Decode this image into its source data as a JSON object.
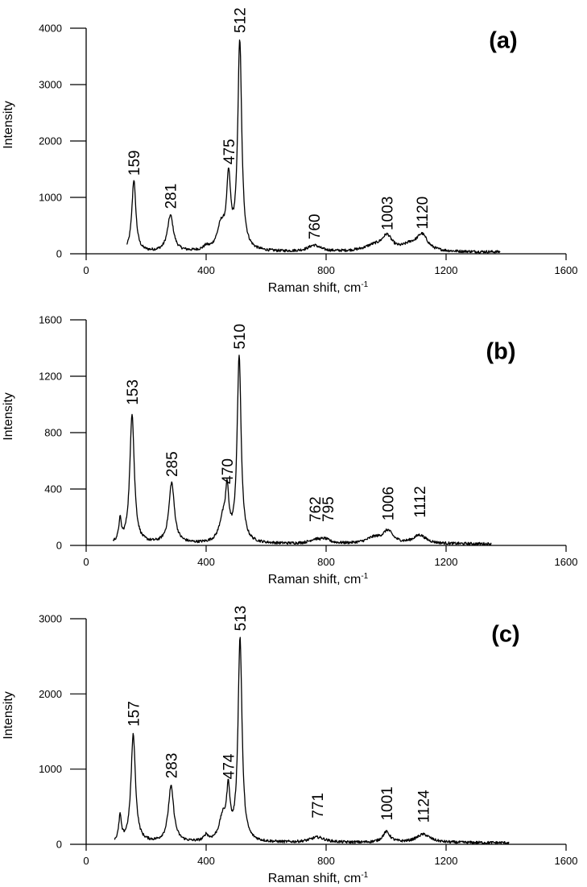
{
  "chart_data": [
    {
      "type": "line",
      "panel_label": "(a)",
      "xlabel": "Raman shift, cm",
      "xlabel_sup": "-1",
      "ylabel": "Intensity",
      "xlim": [
        0,
        1600
      ],
      "ylim": [
        0,
        4000
      ],
      "xticks": [
        0,
        400,
        800,
        1200,
        1600
      ],
      "yticks": [
        0,
        1000,
        2000,
        3000,
        4000
      ],
      "xtick_labels": [
        "0",
        "400",
        "800",
        "1200",
        "1600"
      ],
      "ytick_labels": [
        "0",
        "1000",
        "2000",
        "3000",
        "4000"
      ],
      "x_range": [
        135,
        1380
      ],
      "baseline": 30,
      "peaks": [
        {
          "center": 159,
          "height": 1270,
          "width": 8
        },
        {
          "center": 281,
          "height": 640,
          "width": 12
        },
        {
          "center": 400,
          "height": 60,
          "width": 10
        },
        {
          "center": 450,
          "height": 420,
          "width": 16
        },
        {
          "center": 475,
          "height": 1200,
          "width": 8
        },
        {
          "center": 512,
          "height": 3700,
          "width": 8
        },
        {
          "center": 760,
          "height": 110,
          "width": 25
        },
        {
          "center": 960,
          "height": 100,
          "width": 40
        },
        {
          "center": 1003,
          "height": 250,
          "width": 20
        },
        {
          "center": 1080,
          "height": 100,
          "width": 30
        },
        {
          "center": 1120,
          "height": 280,
          "width": 22
        }
      ],
      "annotations": [
        {
          "text": "159",
          "x": 159,
          "y": 1270
        },
        {
          "text": "281",
          "x": 281,
          "y": 680
        },
        {
          "text": "475",
          "x": 475,
          "y": 1470
        },
        {
          "text": "512",
          "x": 512,
          "y": 3800
        },
        {
          "text": "760",
          "x": 760,
          "y": 140
        },
        {
          "text": "1003",
          "x": 1003,
          "y": 300
        },
        {
          "text": "1120",
          "x": 1120,
          "y": 320
        }
      ]
    },
    {
      "type": "line",
      "panel_label": "(b)",
      "xlabel": "Raman shift, cm",
      "xlabel_sup": "-1",
      "ylabel": "Intensity",
      "xlim": [
        0,
        1600
      ],
      "ylim": [
        0,
        1600
      ],
      "xticks": [
        0,
        400,
        800,
        1200,
        1600
      ],
      "yticks": [
        0,
        400,
        800,
        1200,
        1600
      ],
      "xtick_labels": [
        "0",
        "400",
        "800",
        "1200",
        "1600"
      ],
      "ytick_labels": [
        "0",
        "400",
        "800",
        "1200",
        "1600"
      ],
      "x_range": [
        90,
        1350
      ],
      "baseline": 10,
      "peaks": [
        {
          "center": 113,
          "height": 150,
          "width": 5
        },
        {
          "center": 153,
          "height": 920,
          "width": 9
        },
        {
          "center": 285,
          "height": 430,
          "width": 11
        },
        {
          "center": 455,
          "height": 150,
          "width": 14
        },
        {
          "center": 470,
          "height": 330,
          "width": 7
        },
        {
          "center": 510,
          "height": 1320,
          "width": 8
        },
        {
          "center": 762,
          "height": 25,
          "width": 20
        },
        {
          "center": 795,
          "height": 30,
          "width": 20
        },
        {
          "center": 960,
          "height": 40,
          "width": 30
        },
        {
          "center": 1006,
          "height": 85,
          "width": 20
        },
        {
          "center": 1112,
          "height": 60,
          "width": 25
        }
      ],
      "annotations": [
        {
          "text": "153",
          "x": 153,
          "y": 950
        },
        {
          "text": "285",
          "x": 285,
          "y": 440
        },
        {
          "text": "470",
          "x": 470,
          "y": 390
        },
        {
          "text": "510",
          "x": 510,
          "y": 1345
        },
        {
          "text": "762",
          "x": 762,
          "y": 120
        },
        {
          "text": "795",
          "x": 805,
          "y": 120
        },
        {
          "text": "1006",
          "x": 1006,
          "y": 130
        },
        {
          "text": "1112",
          "x": 1112,
          "y": 150
        }
      ]
    },
    {
      "type": "line",
      "panel_label": "(c)",
      "xlabel": "Raman shift, cm",
      "xlabel_sup": "-1",
      "ylabel": "Intensity",
      "xlim": [
        0,
        1600
      ],
      "ylim": [
        0,
        3000
      ],
      "xticks": [
        0,
        400,
        800,
        1200,
        1600
      ],
      "yticks": [
        0,
        1000,
        2000,
        3000
      ],
      "xtick_labels": [
        "0",
        "400",
        "800",
        "1200",
        "1600"
      ],
      "ytick_labels": [
        "0",
        "1000",
        "2000",
        "3000"
      ],
      "x_range": [
        95,
        1410
      ],
      "baseline": 20,
      "peaks": [
        {
          "center": 113,
          "height": 330,
          "width": 5
        },
        {
          "center": 157,
          "height": 1430,
          "width": 9
        },
        {
          "center": 283,
          "height": 740,
          "width": 11
        },
        {
          "center": 400,
          "height": 80,
          "width": 8
        },
        {
          "center": 455,
          "height": 300,
          "width": 14
        },
        {
          "center": 474,
          "height": 620,
          "width": 7
        },
        {
          "center": 513,
          "height": 2700,
          "width": 8
        },
        {
          "center": 771,
          "height": 70,
          "width": 30
        },
        {
          "center": 1001,
          "height": 140,
          "width": 15
        },
        {
          "center": 1124,
          "height": 110,
          "width": 28
        }
      ],
      "annotations": [
        {
          "text": "157",
          "x": 157,
          "y": 1480
        },
        {
          "text": "283",
          "x": 283,
          "y": 790
        },
        {
          "text": "474",
          "x": 474,
          "y": 780
        },
        {
          "text": "513",
          "x": 513,
          "y": 2750
        },
        {
          "text": "771",
          "x": 771,
          "y": 260
        },
        {
          "text": "1001",
          "x": 1001,
          "y": 230
        },
        {
          "text": "1124",
          "x": 1124,
          "y": 200
        }
      ]
    }
  ]
}
